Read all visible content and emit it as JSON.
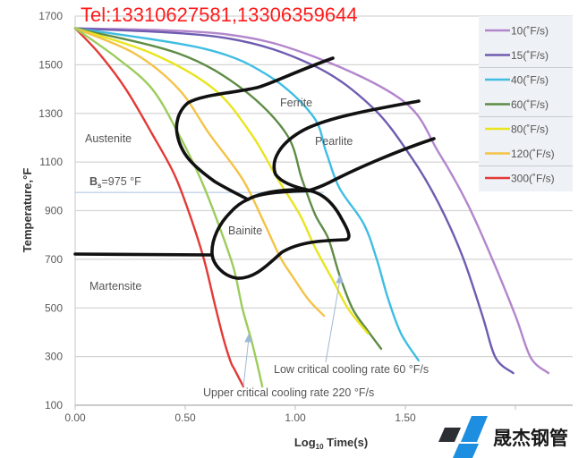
{
  "watermark": "Tel:13310627581,13306359644",
  "logo_text": "晟杰钢管",
  "chart_data": {
    "type": "line",
    "title": "",
    "xlabel": "Log10 Time(s)",
    "xlabel_main": "Log",
    "xlabel_sub": "10",
    "xlabel_rest": " Time(s)",
    "ylabel": "Temperature,°F",
    "xlim": [
      0,
      2.26
    ],
    "ylim": [
      100,
      1700
    ],
    "xticks": [
      0,
      0.5,
      1.0,
      1.5
    ],
    "xtick_labels": [
      "0.00",
      "0.50",
      "1.00",
      "1.50"
    ],
    "yticks": [
      100,
      300,
      500,
      700,
      900,
      1100,
      1300,
      1500,
      1700
    ],
    "ytick_labels": [
      "100",
      "300",
      "500",
      "700",
      "900",
      "1100",
      "1300",
      "1500",
      "1700"
    ],
    "grid": true,
    "legend_position": "top-right",
    "series": [
      {
        "name": "10(˚F/s)",
        "color": "#b386cc",
        "points": [
          [
            0,
            1650
          ],
          [
            0.67,
            1627
          ],
          [
            1.08,
            1535
          ],
          [
            1.49,
            1351
          ],
          [
            1.65,
            1141
          ],
          [
            1.78,
            932
          ],
          [
            1.89,
            711
          ],
          [
            2.0,
            468
          ],
          [
            2.07,
            295
          ],
          [
            2.15,
            232
          ]
        ]
      },
      {
        "name": "15(˚F/s)",
        "color": "#6f5cb0",
        "points": [
          [
            0,
            1650
          ],
          [
            0.67,
            1612
          ],
          [
            1.08,
            1498
          ],
          [
            1.35,
            1325
          ],
          [
            1.53,
            1116
          ],
          [
            1.65,
            932
          ],
          [
            1.76,
            711
          ],
          [
            1.85,
            468
          ],
          [
            1.91,
            295
          ],
          [
            1.99,
            232
          ]
        ]
      },
      {
        "name": "40(˚F/s)",
        "color": "#3fbde3",
        "points": [
          [
            0,
            1650
          ],
          [
            0.59,
            1565
          ],
          [
            0.88,
            1454
          ],
          [
            1.08,
            1289
          ],
          [
            1.14,
            1141
          ],
          [
            1.2,
            994
          ],
          [
            1.31,
            847
          ],
          [
            1.37,
            700
          ],
          [
            1.42,
            542
          ],
          [
            1.48,
            395
          ],
          [
            1.56,
            284
          ]
        ]
      },
      {
        "name": "60(˚F/s)",
        "color": "#5e8c45",
        "points": [
          [
            0,
            1650
          ],
          [
            0.47,
            1546
          ],
          [
            0.76,
            1400
          ],
          [
            0.96,
            1215
          ],
          [
            1.03,
            1030
          ],
          [
            1.09,
            884
          ],
          [
            1.15,
            785
          ],
          [
            1.2,
            637
          ],
          [
            1.26,
            497
          ],
          [
            1.33,
            405
          ],
          [
            1.39,
            332
          ]
        ]
      },
      {
        "name": "80(˚F/s)",
        "color": "#e9e41e",
        "points": [
          [
            0,
            1650
          ],
          [
            0.35,
            1546
          ],
          [
            0.63,
            1400
          ],
          [
            0.8,
            1215
          ],
          [
            0.92,
            1030
          ],
          [
            1.02,
            884
          ],
          [
            1.09,
            748
          ],
          [
            1.17,
            615
          ],
          [
            1.24,
            497
          ],
          [
            1.33,
            395
          ]
        ]
      },
      {
        "name": "120(˚F/s)",
        "color": "#f4c246",
        "points": [
          [
            0,
            1650
          ],
          [
            0.27,
            1546
          ],
          [
            0.47,
            1400
          ],
          [
            0.61,
            1215
          ],
          [
            0.76,
            1030
          ],
          [
            0.86,
            847
          ],
          [
            0.93,
            711
          ],
          [
            0.99,
            626
          ],
          [
            1.06,
            534
          ],
          [
            1.13,
            468
          ]
        ]
      },
      {
        "name": "300(˚F/s)",
        "color": "#e23a36",
        "points": [
          [
            0,
            1650
          ],
          [
            0.11,
            1545
          ],
          [
            0.23,
            1400
          ],
          [
            0.35,
            1215
          ],
          [
            0.45,
            1050
          ],
          [
            0.52,
            885
          ],
          [
            0.585,
            700
          ],
          [
            0.634,
            516
          ],
          [
            0.675,
            369
          ],
          [
            0.707,
            277
          ],
          [
            0.724,
            247
          ],
          [
            0.764,
            177
          ]
        ]
      },
      {
        "name": "",
        "color": "#9ccc5c",
        "points": [
          [
            0,
            1650
          ],
          [
            0.19,
            1528
          ],
          [
            0.35,
            1400
          ],
          [
            0.47,
            1215
          ],
          [
            0.57,
            1030
          ],
          [
            0.65,
            847
          ],
          [
            0.72,
            663
          ],
          [
            0.76,
            497
          ],
          [
            0.8,
            369
          ],
          [
            0.83,
            258
          ],
          [
            0.85,
            177
          ]
        ]
      }
    ],
    "regions": {
      "austenite": "Austenite",
      "ferrite": "Ferrite",
      "pearlite": "Pearlite",
      "bainite": "Bainite",
      "martensite": "Martensite"
    },
    "bs_label_main": "B",
    "bs_label_sub": "s",
    "bs_label_rest": "=975 °F",
    "bs_value": 975,
    "annotations": {
      "low_critical": "Low critical cooling rate 60 °F/s",
      "upper_critical": "Upper critical cooling rate 220 °F/s"
    }
  }
}
